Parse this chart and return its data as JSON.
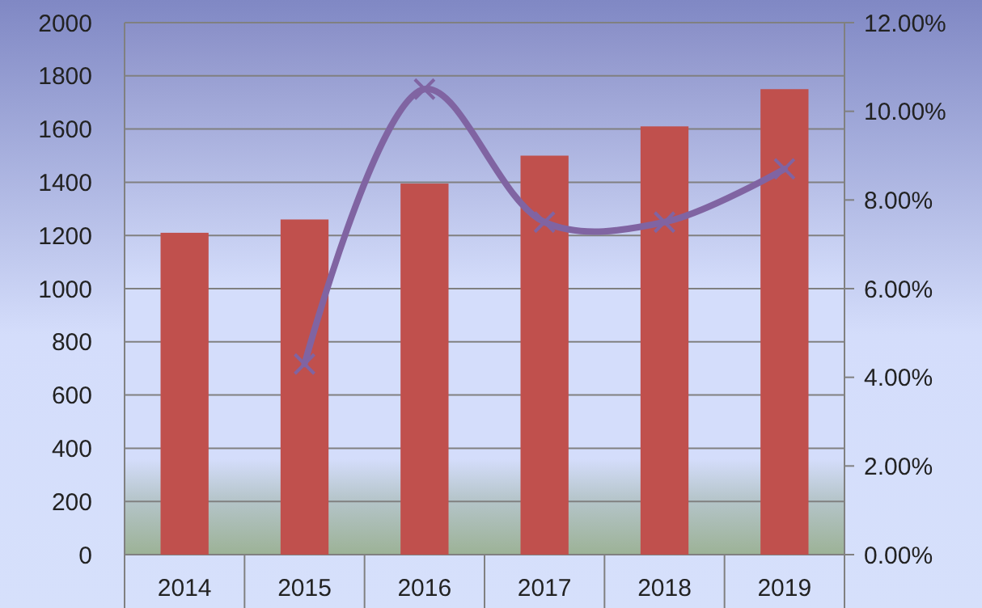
{
  "chart_data": {
    "type": "bar",
    "categories": [
      "2014",
      "2015",
      "2016",
      "2017",
      "2018",
      "2019"
    ],
    "series": [
      {
        "color": "#c0504d",
        "values": [
          1210,
          1260,
          1395,
          1500,
          1610,
          1750
        ]
      },
      {
        "type": "line",
        "axis": "y2",
        "color": "#8064a2",
        "marker": "cross",
        "values": [
          null,
          4.3,
          10.5,
          7.5,
          7.5,
          8.7
        ]
      }
    ],
    "ylim": [
      0,
      2000
    ],
    "yticks": [
      0,
      200,
      400,
      600,
      800,
      1000,
      1200,
      1400,
      1600,
      1800,
      2000
    ],
    "y2lim": [
      0,
      12
    ],
    "y2ticks": [
      {
        "value": 0,
        "label": "0.00%"
      },
      {
        "value": 2,
        "label": "2.00%"
      },
      {
        "value": 4,
        "label": "4.00%"
      },
      {
        "value": 6,
        "label": "6.00%"
      },
      {
        "value": 8,
        "label": "8.00%"
      },
      {
        "value": 10,
        "label": "10.00%"
      },
      {
        "value": 12,
        "label": "12.00%"
      }
    ],
    "grid": "y"
  }
}
